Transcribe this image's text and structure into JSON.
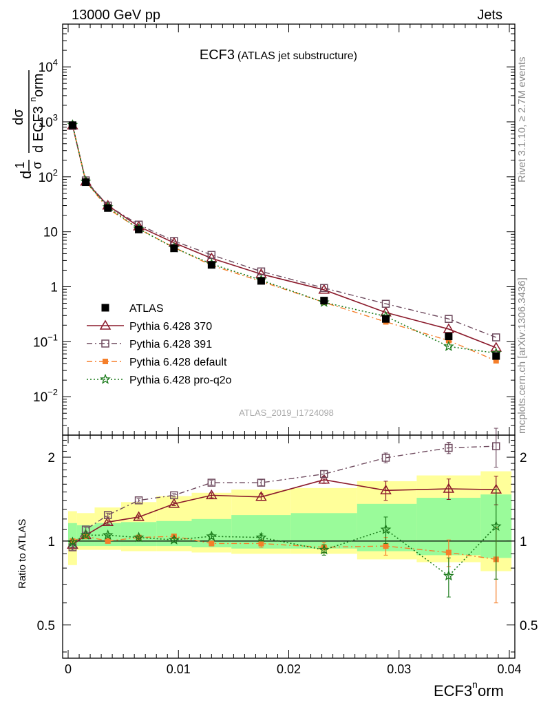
{
  "header": {
    "energy_label": "13000 GeV pp",
    "category_label": "Jets",
    "title_main": "ECF3",
    "title_sub": "(ATLAS jet substructure)",
    "side_rivet": "Rivet 3.1.10, ≥ 2.7M events",
    "side_mcplots": "mcplots.cern.ch [arXiv:1306.3436]",
    "analysis_id": "ATLAS_2019_I1724098"
  },
  "axes": {
    "ylabel_main_parts": [
      "1",
      "σ",
      "dσ",
      "d ECF3",
      "n",
      "orm"
    ],
    "ylabel_main_prefix": "d",
    "ylabel_ratio": "Ratio to ATLAS",
    "xlabel_base": "ECF3",
    "xlabel_sup": "n",
    "xlabel_tail": "orm",
    "x_ticks": [
      "0",
      "0.01",
      "0.02",
      "0.03",
      "0.04"
    ],
    "y_main_ticks": [
      {
        "base": "10",
        "exp": "−2",
        "v": 0.01
      },
      {
        "base": "10",
        "exp": "−1",
        "v": 0.1
      },
      {
        "base": "1",
        "exp": "",
        "v": 1
      },
      {
        "base": "10",
        "exp": "",
        "v": 10
      },
      {
        "base": "10",
        "exp": "2",
        "v": 100
      },
      {
        "base": "10",
        "exp": "3",
        "v": 1000
      },
      {
        "base": "10",
        "exp": "4",
        "v": 10000
      }
    ],
    "y_ratio_ticks": [
      "0.5",
      "1",
      "2"
    ]
  },
  "colors": {
    "atlas": "#000000",
    "p370": "#8b1a2b",
    "p391": "#6e4a5e",
    "pdefault": "#f57f2a",
    "pq2o": "#1a7a1a",
    "band_yellow": "#ffff9a",
    "band_green": "#9afb9a",
    "side_text": "#8c8c8c"
  },
  "chart_data": {
    "type": "line",
    "title": "ECF3 (ATLAS jet substructure)",
    "xlabel": "ECF3norm",
    "ylabel": "1/σ dσ/d ECF3norm",
    "ylabel_ratio": "Ratio to ATLAS",
    "xlim": [
      -0.0005,
      0.0405
    ],
    "ylim_main": [
      0.002,
      60000
    ],
    "ylim_ratio": [
      0.38,
      2.4
    ],
    "y_scale": "log",
    "legend_position": "lower-left",
    "x": [
      0.0004,
      0.0016,
      0.0036,
      0.0064,
      0.0096,
      0.013,
      0.0175,
      0.0232,
      0.0288,
      0.0345,
      0.0388
    ],
    "ratio_bands": {
      "x_edges": [
        0.0,
        0.0008,
        0.0024,
        0.0048,
        0.008,
        0.0112,
        0.0148,
        0.0202,
        0.0262,
        0.0316,
        0.0374,
        0.0402
      ],
      "yellow_lo": [
        0.82,
        0.93,
        0.93,
        0.92,
        0.92,
        0.91,
        0.9,
        0.9,
        0.86,
        0.84,
        0.78
      ],
      "yellow_hi": [
        1.28,
        1.26,
        1.32,
        1.38,
        1.45,
        1.49,
        1.53,
        1.55,
        1.64,
        1.72,
        1.78
      ],
      "green_lo": [
        0.94,
        0.96,
        0.96,
        0.96,
        0.96,
        0.95,
        0.94,
        0.94,
        0.92,
        0.89,
        0.87
      ],
      "green_hi": [
        1.16,
        1.14,
        1.16,
        1.17,
        1.18,
        1.2,
        1.24,
        1.26,
        1.36,
        1.43,
        1.47
      ]
    },
    "series": [
      {
        "name": "ATLAS",
        "marker": "square-filled",
        "values": [
          870,
          80,
          27,
          11,
          5.0,
          2.5,
          1.28,
          0.56,
          0.26,
          0.125,
          0.055
        ],
        "ratio": [
          1,
          1,
          1,
          1,
          1,
          1,
          1,
          1,
          1,
          1,
          1
        ],
        "ratio_err": [
          0,
          0,
          0,
          0,
          0,
          0,
          0,
          0,
          0,
          0,
          0
        ]
      },
      {
        "name": "Pythia 6.428 370",
        "marker": "triangle-open",
        "line": "solid",
        "values": [
          860,
          82,
          30,
          12.5,
          6.3,
          3.3,
          1.7,
          0.88,
          0.34,
          0.17,
          0.078
        ],
        "ratio": [
          0.97,
          1.05,
          1.17,
          1.22,
          1.36,
          1.46,
          1.44,
          1.66,
          1.52,
          1.54,
          1.53
        ],
        "ratio_err": [
          0.02,
          0.02,
          0.02,
          0.02,
          0.02,
          0.03,
          0.04,
          0.05,
          0.12,
          0.13,
          0.18
        ]
      },
      {
        "name": "Pythia 6.428 391",
        "marker": "square-open",
        "line": "dashdot",
        "values": [
          840,
          86,
          30,
          13.5,
          6.8,
          3.8,
          1.9,
          0.95,
          0.49,
          0.26,
          0.12
        ],
        "ratio": [
          0.95,
          1.1,
          1.24,
          1.4,
          1.46,
          1.62,
          1.62,
          1.74,
          1.99,
          2.16,
          2.19
        ],
        "ratio_err": [
          0.02,
          0.02,
          0.02,
          0.02,
          0.02,
          0.03,
          0.04,
          0.05,
          0.08,
          0.1,
          0.35
        ]
      },
      {
        "name": "Pythia 6.428 default",
        "marker": "square-filled-small",
        "line": "dashdot",
        "values": [
          875,
          82,
          26.5,
          11.3,
          5.2,
          2.45,
          1.25,
          0.52,
          0.23,
          0.105,
          0.045
        ],
        "ratio": [
          1.0,
          1.04,
          1.0,
          1.03,
          1.04,
          0.98,
          0.98,
          0.95,
          0.96,
          0.91,
          0.86
        ],
        "ratio_err": [
          0.01,
          0.01,
          0.01,
          0.01,
          0.02,
          0.02,
          0.03,
          0.04,
          0.07,
          0.1,
          0.26
        ]
      },
      {
        "name": "Pythia 6.428 pro-q2o",
        "marker": "star-open",
        "line": "dotted",
        "values": [
          880,
          82,
          28,
          11.3,
          5.1,
          2.6,
          1.32,
          0.52,
          0.29,
          0.082,
          0.062
        ],
        "ratio": [
          0.99,
          1.05,
          1.05,
          1.03,
          1.01,
          1.04,
          1.03,
          0.93,
          1.1,
          0.75,
          1.13
        ],
        "ratio_err": [
          0.01,
          0.01,
          0.01,
          0.01,
          0.02,
          0.02,
          0.03,
          0.04,
          0.12,
          0.12,
          0.4
        ]
      }
    ]
  }
}
